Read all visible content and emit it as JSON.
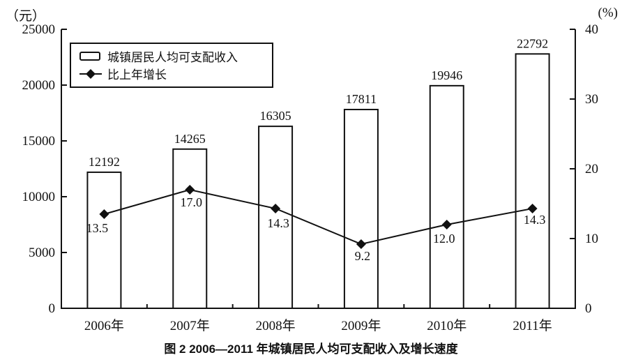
{
  "figure": {
    "caption": "图 2  2006—2011 年城镇居民人均可支配收入及增长速度"
  },
  "legend": {
    "bar_label": "城镇居民人均可支配收入",
    "line_label": "比上年增长"
  },
  "chart_data": {
    "type": "bar+line",
    "title": "图 2  2006—2011 年城镇居民人均可支配收入及增长速度",
    "categories": [
      "2006年",
      "2007年",
      "2008年",
      "2009年",
      "2010年",
      "2011年"
    ],
    "series": [
      {
        "name": "城镇居民人均可支配收入",
        "type": "bar",
        "axis": "left",
        "values": [
          12192,
          14265,
          16305,
          17811,
          19946,
          22792
        ],
        "value_labels": [
          "12192",
          "14265",
          "16305",
          "17811",
          "19946",
          "22792"
        ]
      },
      {
        "name": "比上年增长",
        "type": "line",
        "axis": "right",
        "values": [
          13.5,
          17.0,
          14.3,
          9.2,
          12.0,
          14.3
        ],
        "value_labels": [
          "13.5",
          "17.0",
          "14.3",
          "9.2",
          "12.0",
          "14.3"
        ]
      }
    ],
    "left_axis": {
      "unit": "（元）",
      "min": 0,
      "max": 25000,
      "tick_step": 5000,
      "tick_labels": [
        "0",
        "5000",
        "10000",
        "15000",
        "20000",
        "25000"
      ]
    },
    "right_axis": {
      "unit": "(%)",
      "min": 0,
      "max": 40,
      "tick_step": 10,
      "tick_labels": [
        "0",
        "10",
        "20",
        "30",
        "40"
      ]
    },
    "layout_hints": {
      "grid": "off",
      "legend_position": "top-left-inside",
      "bar_fill": "#ffffff",
      "stroke_color": "#111111"
    }
  }
}
